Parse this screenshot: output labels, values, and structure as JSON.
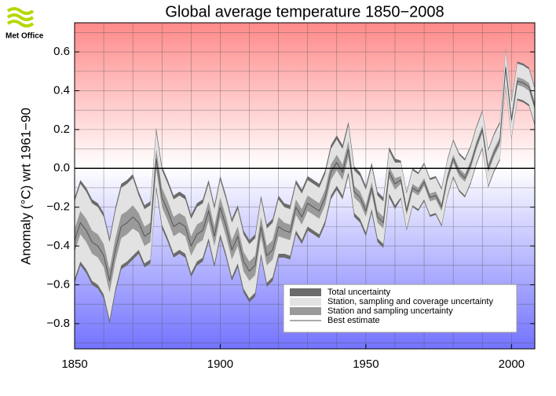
{
  "logo": "Met Office",
  "chart_data": {
    "type": "line",
    "title": "Global average temperature 1850−2008",
    "ylabel": "Anomaly (°C) wrt 1961−90",
    "x": [
      1850,
      1852,
      1854,
      1856,
      1858,
      1860,
      1862,
      1864,
      1866,
      1868,
      1870,
      1872,
      1874,
      1876,
      1878,
      1880,
      1882,
      1884,
      1886,
      1888,
      1890,
      1892,
      1894,
      1896,
      1898,
      1900,
      1902,
      1904,
      1906,
      1908,
      1910,
      1912,
      1914,
      1916,
      1918,
      1920,
      1922,
      1924,
      1926,
      1928,
      1930,
      1932,
      1934,
      1936,
      1938,
      1940,
      1942,
      1944,
      1946,
      1948,
      1950,
      1952,
      1954,
      1956,
      1958,
      1960,
      1962,
      1964,
      1966,
      1968,
      1970,
      1972,
      1974,
      1976,
      1978,
      1980,
      1982,
      1984,
      1986,
      1988,
      1990,
      1992,
      1994,
      1996,
      1998,
      2000,
      2002,
      2004,
      2006,
      2008
    ],
    "bands": [
      {
        "name": "Total uncertainty",
        "color": "#6b6b6b",
        "errors": [
          0.22,
          0.22,
          0.22,
          0.22,
          0.22,
          0.22,
          0.22,
          0.22,
          0.22,
          0.22,
          0.22,
          0.16,
          0.16,
          0.16,
          0.16,
          0.16,
          0.16,
          0.16,
          0.16,
          0.16,
          0.16,
          0.16,
          0.16,
          0.16,
          0.16,
          0.16,
          0.16,
          0.16,
          0.16,
          0.16,
          0.16,
          0.16,
          0.16,
          0.16,
          0.16,
          0.16,
          0.14,
          0.14,
          0.14,
          0.14,
          0.14,
          0.14,
          0.14,
          0.14,
          0.14,
          0.14,
          0.14,
          0.14,
          0.13,
          0.13,
          0.13,
          0.13,
          0.13,
          0.13,
          0.13,
          0.13,
          0.1,
          0.1,
          0.1,
          0.1,
          0.1,
          0.1,
          0.1,
          0.1,
          0.1,
          0.1,
          0.1,
          0.1,
          0.1,
          0.1,
          0.1,
          0.1,
          0.1,
          0.1,
          0.1,
          0.1,
          0.1,
          0.1,
          0.1,
          0.1
        ]
      },
      {
        "name": "Station, sampling and coverage uncertainty",
        "color": "#e2e2e2",
        "errors": [
          0.2,
          0.2,
          0.2,
          0.2,
          0.2,
          0.2,
          0.2,
          0.2,
          0.2,
          0.2,
          0.2,
          0.14,
          0.14,
          0.14,
          0.14,
          0.14,
          0.14,
          0.14,
          0.14,
          0.14,
          0.14,
          0.14,
          0.14,
          0.14,
          0.14,
          0.14,
          0.14,
          0.14,
          0.14,
          0.14,
          0.14,
          0.14,
          0.14,
          0.14,
          0.14,
          0.14,
          0.12,
          0.12,
          0.12,
          0.12,
          0.12,
          0.12,
          0.12,
          0.12,
          0.12,
          0.12,
          0.12,
          0.12,
          0.11,
          0.11,
          0.11,
          0.11,
          0.11,
          0.11,
          0.11,
          0.11,
          0.09,
          0.09,
          0.09,
          0.09,
          0.09,
          0.09,
          0.09,
          0.09,
          0.09,
          0.09,
          0.09,
          0.09,
          0.09,
          0.09,
          0.09,
          0.09,
          0.09,
          0.09,
          0.09,
          0.09,
          0.09,
          0.09,
          0.09,
          0.09
        ]
      },
      {
        "name": "Station and sampling uncertainty",
        "color": "#9a9a9a",
        "errors": [
          0.06,
          0.06,
          0.06,
          0.06,
          0.06,
          0.06,
          0.06,
          0.06,
          0.06,
          0.06,
          0.06,
          0.05,
          0.05,
          0.05,
          0.05,
          0.05,
          0.05,
          0.05,
          0.05,
          0.05,
          0.05,
          0.05,
          0.05,
          0.05,
          0.05,
          0.05,
          0.05,
          0.05,
          0.05,
          0.05,
          0.05,
          0.05,
          0.05,
          0.05,
          0.05,
          0.05,
          0.04,
          0.04,
          0.04,
          0.04,
          0.04,
          0.04,
          0.04,
          0.04,
          0.04,
          0.04,
          0.04,
          0.04,
          0.03,
          0.03,
          0.03,
          0.03,
          0.03,
          0.03,
          0.03,
          0.03,
          0.02,
          0.02,
          0.02,
          0.02,
          0.02,
          0.02,
          0.02,
          0.02,
          0.02,
          0.02,
          0.02,
          0.02,
          0.02,
          0.02,
          0.02,
          0.02,
          0.02,
          0.02,
          0.02,
          0.02,
          0.02,
          0.02,
          0.02,
          0.02
        ]
      }
    ],
    "series": [
      {
        "name": "Best estimate",
        "color": "#555555",
        "values": [
          -0.37,
          -0.28,
          -0.32,
          -0.38,
          -0.4,
          -0.45,
          -0.58,
          -0.42,
          -0.3,
          -0.28,
          -0.25,
          -0.28,
          -0.35,
          -0.33,
          0.05,
          -0.15,
          -0.22,
          -0.3,
          -0.28,
          -0.3,
          -0.4,
          -0.34,
          -0.32,
          -0.22,
          -0.35,
          -0.2,
          -0.3,
          -0.42,
          -0.35,
          -0.48,
          -0.53,
          -0.5,
          -0.3,
          -0.45,
          -0.42,
          -0.3,
          -0.32,
          -0.33,
          -0.2,
          -0.25,
          -0.18,
          -0.2,
          -0.22,
          -0.15,
          -0.02,
          0.03,
          -0.02,
          0.1,
          -0.12,
          -0.15,
          -0.22,
          -0.1,
          -0.25,
          -0.28,
          -0.02,
          -0.08,
          -0.06,
          -0.22,
          -0.1,
          -0.12,
          -0.07,
          -0.15,
          -0.14,
          -0.2,
          -0.05,
          0.05,
          -0.02,
          -0.05,
          0.02,
          0.12,
          0.2,
          0.0,
          0.08,
          0.14,
          0.52,
          0.25,
          0.45,
          0.44,
          0.42,
          0.32
        ]
      }
    ],
    "xlim": [
      1850,
      2008
    ],
    "ylim": [
      -0.93,
      0.75
    ],
    "xticks": [
      1850,
      1900,
      1950,
      2000
    ],
    "yticks": [
      {
        "value": -0.8,
        "label": "−0.8"
      },
      {
        "value": -0.6,
        "label": "−0.6"
      },
      {
        "value": -0.4,
        "label": "−0.4"
      },
      {
        "value": -0.2,
        "label": "−0.2"
      },
      {
        "value": 0,
        "label": "0.0"
      },
      0.2,
      0.4,
      0.6
    ],
    "xgrid": [
      1860,
      1870,
      1880,
      1890,
      1900,
      1910,
      1920,
      1930,
      1940,
      1950,
      1960,
      1970,
      1980,
      1990,
      2000
    ],
    "ygrid": [
      -0.9,
      -0.8,
      -0.7,
      -0.6,
      -0.5,
      -0.4,
      -0.3,
      -0.2,
      -0.1,
      0.1,
      0.2,
      0.3,
      0.4,
      0.5,
      0.6,
      0.7
    ],
    "legend": "lower right"
  }
}
